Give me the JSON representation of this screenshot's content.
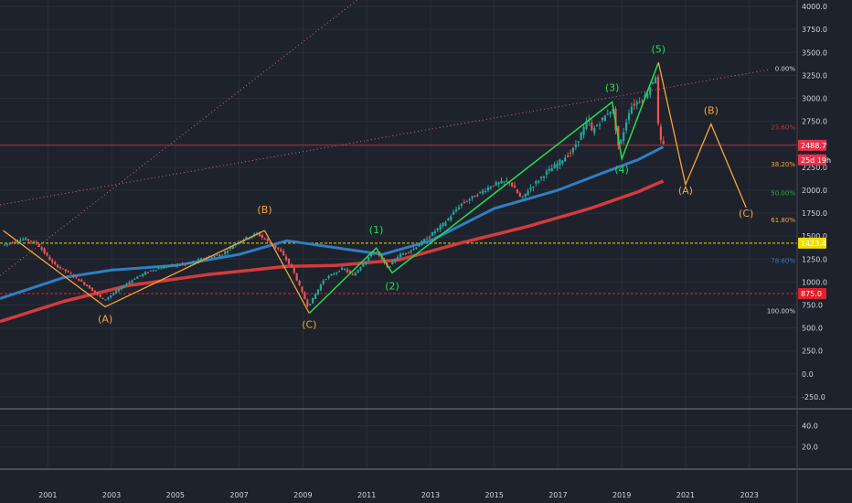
{
  "chart_data": {
    "type": "line",
    "x_axis": {
      "min_year": 1999.5,
      "max_year": 2024.5,
      "tick_labels": [
        "2001",
        "2003",
        "2005",
        "2007",
        "2009",
        "2011",
        "2013",
        "2015",
        "2017",
        "2019",
        "2021",
        "2023"
      ],
      "tick_years": [
        2001,
        2003,
        2005,
        2007,
        2009,
        2011,
        2013,
        2015,
        2017,
        2019,
        2021,
        2023
      ]
    },
    "y_axis": {
      "ylim": [
        -370,
        4070
      ],
      "tick_labels": [
        "4000.0",
        "3750.0",
        "3500.0",
        "3250.0",
        "3000.0",
        "2750.0",
        "2500.0",
        "2250.0",
        "2000.0",
        "1750.0",
        "1500.0",
        "1250.0",
        "1000.0",
        "750.0",
        "500.0",
        "250.0",
        "0.0",
        "-250.0"
      ],
      "tick_values": [
        4000,
        3750,
        3500,
        3250,
        3000,
        2750,
        2500,
        2250,
        2000,
        1750,
        1500,
        1250,
        1000,
        750,
        500,
        250,
        0,
        -250
      ]
    },
    "sub_axis": {
      "ylim": [
        0,
        55
      ],
      "tick_labels": [
        "40.0",
        "20.0"
      ],
      "tick_values": [
        40,
        20
      ]
    },
    "price_series": {
      "name": "",
      "x": [
        1999.6,
        2000.3,
        2000.7,
        2001.2,
        2001.7,
        2002.3,
        2002.8,
        2003.3,
        2003.8,
        2004.3,
        2004.9,
        2005.5,
        2006.0,
        2006.5,
        2007.0,
        2007.6,
        2007.9,
        2008.3,
        2008.7,
        2009.2,
        2009.7,
        2010.3,
        2010.6,
        2011.3,
        2011.7,
        2012.0,
        2012.5,
        2013.0,
        2013.5,
        2014.0,
        2014.5,
        2015.0,
        2015.5,
        2015.9,
        2016.1,
        2016.6,
        2017.0,
        2017.5,
        2018.0,
        2018.1,
        2018.5,
        2018.75,
        2018.95,
        2019.3,
        2019.6,
        2019.8,
        2020.1,
        2020.2,
        2020.3
      ],
      "y": [
        1400,
        1470,
        1420,
        1200,
        1100,
        950,
        800,
        930,
        1050,
        1130,
        1180,
        1200,
        1270,
        1300,
        1440,
        1530,
        1450,
        1350,
        1150,
        730,
        1030,
        1150,
        1070,
        1350,
        1150,
        1280,
        1360,
        1500,
        1650,
        1850,
        1950,
        2060,
        2100,
        1900,
        2000,
        2170,
        2280,
        2430,
        2780,
        2640,
        2800,
        2900,
        2450,
        2900,
        2980,
        3030,
        3250,
        2600,
        2488.7
      ]
    },
    "ma_blue": {
      "x": [
        1999.5,
        2001.5,
        2003.0,
        2005.0,
        2007.0,
        2008.5,
        2009.5,
        2011.5,
        2013.0,
        2015.0,
        2017.0,
        2018.5,
        2019.5,
        2020.3
      ],
      "y": [
        820,
        1050,
        1130,
        1180,
        1300,
        1450,
        1400,
        1300,
        1450,
        1800,
        2000,
        2200,
        2330,
        2470
      ]
    },
    "ma_red": {
      "x": [
        1999.5,
        2001.5,
        2003.5,
        2006.0,
        2008.5,
        2010.0,
        2012.0,
        2014.0,
        2016.0,
        2018.0,
        2019.5,
        2020.3
      ],
      "y": [
        570,
        790,
        960,
        1080,
        1170,
        1180,
        1240,
        1430,
        1600,
        1800,
        1980,
        2100
      ]
    },
    "abc_first": {
      "x": [
        1999.6,
        2002.8,
        2007.8
      ],
      "y": [
        1560,
        730,
        1560
      ]
    },
    "abc_second": {
      "x": [
        2007.8,
        2009.2
      ],
      "y": [
        1560,
        660
      ]
    },
    "impulse": {
      "x": [
        2009.2,
        2011.3,
        2011.8,
        2018.7,
        2019.0,
        2020.15
      ],
      "y": [
        660,
        1370,
        1100,
        2960,
        2340,
        3390
      ]
    },
    "projection": {
      "x": [
        2020.15,
        2021.0,
        2021.8,
        2022.9
      ],
      "y": [
        3390,
        2060,
        2720,
        1810
      ]
    },
    "wave_labels": [
      {
        "text": "(A)",
        "x": 2002.8,
        "y": 560,
        "color": "#f7a534"
      },
      {
        "text": "(B)",
        "x": 2007.8,
        "y": 1750,
        "color": "#f7a534"
      },
      {
        "text": "(C)",
        "x": 2009.2,
        "y": 500,
        "color": "#f7a534"
      },
      {
        "text": "(1)",
        "x": 2011.3,
        "y": 1530,
        "color": "#20e04a"
      },
      {
        "text": "(2)",
        "x": 2011.8,
        "y": 920,
        "color": "#20e04a"
      },
      {
        "text": "(3)",
        "x": 2018.7,
        "y": 3080,
        "color": "#20e04a"
      },
      {
        "text": "(4)",
        "x": 2019.0,
        "y": 2190,
        "color": "#20e04a"
      },
      {
        "text": "(5)",
        "x": 2020.15,
        "y": 3500,
        "color": "#20e04a"
      },
      {
        "text": "(A)",
        "x": 2021.0,
        "y": 1960,
        "color": "#f7a534"
      },
      {
        "text": "(B)",
        "x": 2021.8,
        "y": 2830,
        "color": "#f7a534"
      },
      {
        "text": "(C)",
        "x": 2022.9,
        "y": 1710,
        "color": "#f7a534"
      }
    ],
    "fib_levels": [
      {
        "text": "0.00%",
        "y": 3330,
        "color": "#d1d4dc"
      },
      {
        "text": "23.60%",
        "y": 2690,
        "color": "#b33a3a"
      },
      {
        "text": "38.20%",
        "y": 2290,
        "color": "#f7a534"
      },
      {
        "text": "50.00%",
        "y": 1975,
        "color": "#20b040"
      },
      {
        "text": "61.80%",
        "y": 1680,
        "color": "#f7a534"
      },
      {
        "text": "78.60%",
        "y": 1240,
        "color": "#2f7fc1"
      },
      {
        "text": "100.00%",
        "y": 690,
        "color": "#d1d4dc"
      }
    ],
    "h_lines": [
      {
        "value": 2488.7,
        "color": "#b02a3a",
        "style": "solid"
      },
      {
        "value": 1423.4,
        "color": "#f0e000",
        "style": "dashed"
      },
      {
        "value": 875.0,
        "color": "#e0202a",
        "style": "dashed"
      }
    ],
    "trend_lines": [
      {
        "x": [
          1999.5,
          2011.0
        ],
        "y": [
          1070,
          4150
        ],
        "color": "#c86e6e"
      },
      {
        "x": [
          1999.5,
          2023.6
        ],
        "y": [
          1840,
          3310
        ],
        "color": "#c86e6e"
      }
    ],
    "price_badges": [
      {
        "text": "2488.7",
        "y": 2488.7,
        "color": "#e5314a"
      },
      {
        "text": "25d 19h",
        "y": 2330,
        "color": "#e5314a"
      },
      {
        "text": "1423.4",
        "y": 1423.4,
        "color": "#f0e000"
      },
      {
        "text": "875.0",
        "y": 875.0,
        "color": "#e0202a"
      }
    ],
    "grid": true
  }
}
